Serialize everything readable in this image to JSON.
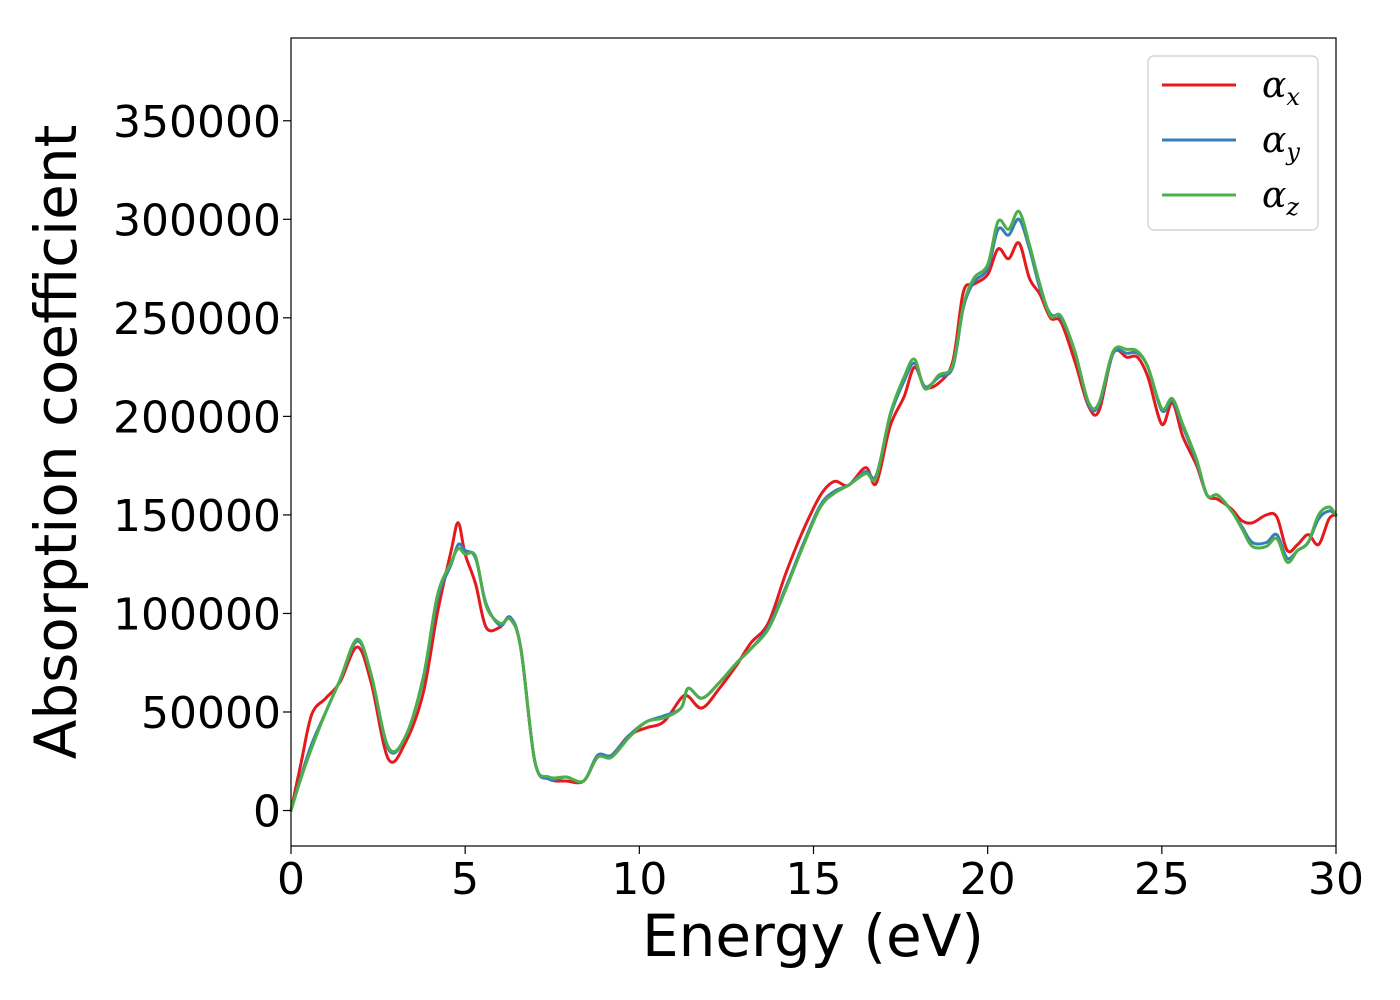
{
  "chart_data": {
    "type": "line",
    "title": "",
    "xlabel": "Energy (eV)",
    "ylabel": "Absorption coefficient",
    "xlim": [
      0,
      30
    ],
    "ylim": [
      -18000,
      392000
    ],
    "xticks": [
      0,
      5,
      10,
      15,
      20,
      25,
      30
    ],
    "xtick_labels": [
      "0",
      "5",
      "10",
      "15",
      "20",
      "25",
      "30"
    ],
    "yticks": [
      0,
      50000,
      100000,
      150000,
      200000,
      250000,
      300000,
      350000
    ],
    "ytick_labels": [
      "0",
      "50000",
      "100000",
      "150000",
      "200000",
      "250000",
      "300000",
      "350000"
    ],
    "grid": false,
    "legend_position": "top-right",
    "x": [
      0,
      0.3,
      0.6,
      1.0,
      1.4,
      1.9,
      2.3,
      2.8,
      3.3,
      3.8,
      4.2,
      4.6,
      4.8,
      5.0,
      5.3,
      5.6,
      6.0,
      6.3,
      6.6,
      7.0,
      7.4,
      7.9,
      8.4,
      8.8,
      9.2,
      9.7,
      10.2,
      10.7,
      11.2,
      11.4,
      11.8,
      12.3,
      12.8,
      13.2,
      13.7,
      14.2,
      14.7,
      15.2,
      15.6,
      16.0,
      16.5,
      16.8,
      17.2,
      17.6,
      17.9,
      18.2,
      18.6,
      19.0,
      19.3,
      19.6,
      20.0,
      20.3,
      20.6,
      20.9,
      21.2,
      21.5,
      21.8,
      22.1,
      22.5,
      22.9,
      23.2,
      23.6,
      24.0,
      24.3,
      24.6,
      25.0,
      25.3,
      25.6,
      26.0,
      26.3,
      26.6,
      27.0,
      27.3,
      27.6,
      28.0,
      28.3,
      28.6,
      28.9,
      29.2,
      29.5,
      29.8,
      30.0
    ],
    "series": [
      {
        "name": "x",
        "color": "#e41a1c",
        "values": [
          0,
          25000,
          49000,
          57000,
          65000,
          83000,
          65000,
          26000,
          35000,
          60000,
          100000,
          132000,
          146000,
          130000,
          115000,
          93000,
          93000,
          98000,
          82000,
          25000,
          16000,
          15000,
          15000,
          27000,
          28000,
          38000,
          42000,
          45000,
          57000,
          58000,
          52000,
          62000,
          74000,
          85000,
          95000,
          120000,
          142000,
          160000,
          167000,
          165000,
          174000,
          166000,
          195000,
          210000,
          225000,
          215000,
          217000,
          228000,
          263000,
          267000,
          272000,
          285000,
          280000,
          288000,
          270000,
          262000,
          250000,
          248000,
          228000,
          205000,
          203000,
          232000,
          230000,
          230000,
          220000,
          196000,
          207000,
          190000,
          175000,
          160000,
          158000,
          153000,
          147000,
          146000,
          150000,
          149000,
          132000,
          135000,
          140000,
          135000,
          148000,
          150000
        ]
      },
      {
        "name": "y",
        "color": "#377eb8",
        "values": [
          0,
          18000,
          34000,
          50000,
          66000,
          86000,
          69000,
          31000,
          38000,
          67000,
          107000,
          125000,
          135000,
          132000,
          128000,
          105000,
          94000,
          98000,
          82000,
          25000,
          16000,
          17000,
          15000,
          28000,
          28000,
          38000,
          45000,
          48000,
          52000,
          62000,
          57000,
          65000,
          75000,
          82000,
          93000,
          113000,
          135000,
          155000,
          162000,
          165000,
          172000,
          170000,
          200000,
          218000,
          227000,
          215000,
          220000,
          225000,
          255000,
          268000,
          275000,
          295000,
          292000,
          300000,
          285000,
          265000,
          252000,
          250000,
          233000,
          206000,
          206000,
          232000,
          232000,
          232000,
          225000,
          203000,
          208000,
          195000,
          177000,
          160000,
          160000,
          152000,
          144000,
          136000,
          136000,
          140000,
          128000,
          132000,
          136000,
          148000,
          152000,
          150000
        ]
      },
      {
        "name": "z",
        "color": "#4daf4a",
        "values": [
          0,
          17000,
          32000,
          50000,
          66000,
          87000,
          69000,
          32000,
          38000,
          68000,
          109000,
          126000,
          133000,
          130000,
          129000,
          104000,
          95000,
          97000,
          82000,
          25000,
          17000,
          17000,
          15000,
          27000,
          27000,
          37000,
          45000,
          47000,
          52000,
          62000,
          57000,
          65000,
          75000,
          82000,
          92000,
          112000,
          134000,
          154000,
          161000,
          165000,
          171000,
          169000,
          201000,
          220000,
          229000,
          214000,
          221000,
          226000,
          256000,
          270000,
          277000,
          299000,
          295000,
          304000,
          287000,
          267000,
          251000,
          251000,
          233000,
          207000,
          207000,
          233000,
          234000,
          233000,
          225000,
          204000,
          209000,
          196000,
          178000,
          160000,
          160000,
          152000,
          143000,
          134000,
          134000,
          138000,
          126000,
          132000,
          136000,
          150000,
          154000,
          150000
        ]
      }
    ],
    "legend": [
      {
        "symbol": "α",
        "subscript": "x",
        "color": "#e41a1c"
      },
      {
        "symbol": "α",
        "subscript": "y",
        "color": "#377eb8"
      },
      {
        "symbol": "α",
        "subscript": "z",
        "color": "#4daf4a"
      }
    ]
  }
}
